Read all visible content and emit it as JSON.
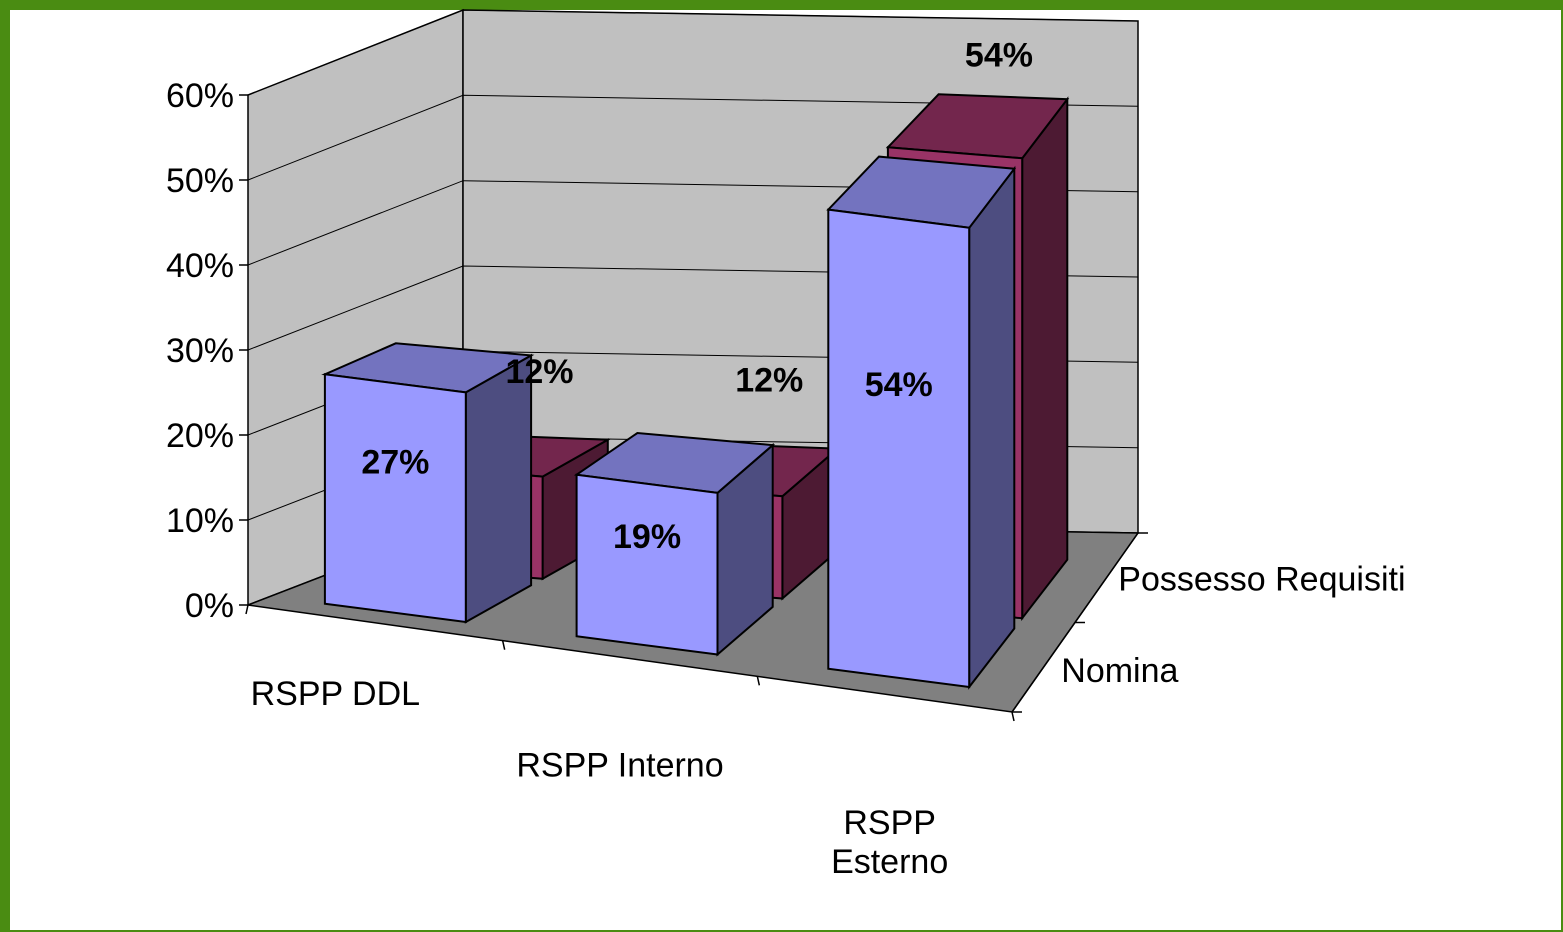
{
  "chart_data": {
    "type": "bar",
    "style": "3d-clustered",
    "title": "",
    "categories": [
      "RSPP DDL",
      "RSPP Interno",
      "RSPP Esterno"
    ],
    "category_lines": [
      [
        "RSPP DDL"
      ],
      [
        "RSPP Interno"
      ],
      [
        "RSPP",
        "Esterno"
      ]
    ],
    "depth_labels": [
      "Possesso Requisiti",
      "Nomina"
    ],
    "series": [
      {
        "name": "Nomina",
        "values": [
          27,
          19,
          54
        ],
        "labels": [
          "27%",
          "19%",
          "54%"
        ],
        "color": "#9999ff"
      },
      {
        "name": "Possesso Requisiti",
        "values": [
          12,
          12,
          54
        ],
        "labels": [
          "12%",
          "12%",
          "54%"
        ],
        "color": "#993366"
      }
    ],
    "ylim": [
      0,
      60
    ],
    "yticks": [
      "0%",
      "10%",
      "20%",
      "30%",
      "40%",
      "50%",
      "60%"
    ],
    "grid": true
  },
  "colors": {
    "frame": "#4a8c12",
    "wall": "#c0c0c0",
    "floor": "#808080"
  }
}
